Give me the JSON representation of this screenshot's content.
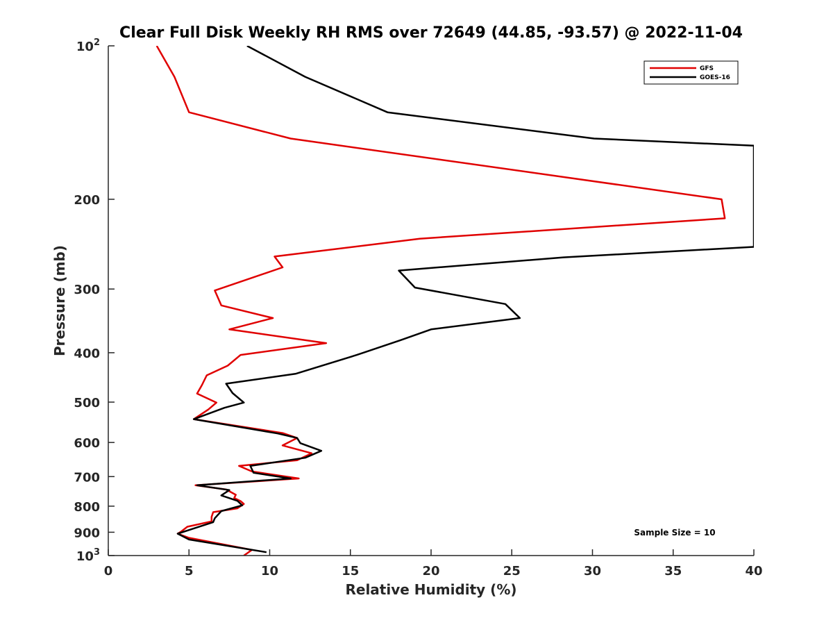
{
  "chart_data": {
    "type": "line",
    "title": "Clear Full Disk Weekly RH RMS over 72649 (44.85, -93.57) @ 2022-11-04",
    "xlabel": "Relative Humidity (%)",
    "ylabel": "Pressure (mb)",
    "xlim": [
      0,
      40
    ],
    "ylim": [
      100,
      1000
    ],
    "y_scale": "log",
    "y_reversed": true,
    "grid": false,
    "legend_position": "top-right",
    "x_ticks": [
      0,
      5,
      10,
      15,
      20,
      25,
      30,
      35,
      40
    ],
    "x_tick_labels": [
      "0",
      "5",
      "10",
      "15",
      "20",
      "25",
      "30",
      "35",
      "40"
    ],
    "y_ticks": [
      100,
      200,
      300,
      400,
      500,
      600,
      700,
      800,
      900,
      1000
    ],
    "y_tick_labels": [
      {
        "base": "10",
        "exp": "2"
      },
      {
        "base": "200",
        "exp": ""
      },
      {
        "base": "300",
        "exp": ""
      },
      {
        "base": "400",
        "exp": ""
      },
      {
        "base": "500",
        "exp": ""
      },
      {
        "base": "600",
        "exp": ""
      },
      {
        "base": "700",
        "exp": ""
      },
      {
        "base": "800",
        "exp": ""
      },
      {
        "base": "900",
        "exp": ""
      },
      {
        "base": "10",
        "exp": "3"
      }
    ],
    "annotation": "Sample Size = 10",
    "series": [
      {
        "name": "GFS",
        "color": "#e00000",
        "points": [
          [
            3.0,
            100
          ],
          [
            4.1,
            115
          ],
          [
            5.0,
            135
          ],
          [
            11.3,
            152
          ],
          [
            38.0,
            200
          ],
          [
            38.2,
            218
          ],
          [
            19.3,
            239
          ],
          [
            10.3,
            259
          ],
          [
            10.8,
            272
          ],
          [
            6.6,
            302
          ],
          [
            7.0,
            323
          ],
          [
            10.2,
            342
          ],
          [
            7.5,
            360
          ],
          [
            13.5,
            383
          ],
          [
            8.2,
            404
          ],
          [
            7.4,
            424
          ],
          [
            6.1,
            443
          ],
          [
            5.8,
            463
          ],
          [
            5.5,
            481
          ],
          [
            6.7,
            501
          ],
          [
            6.2,
            517
          ],
          [
            5.3,
            540
          ],
          [
            10.8,
            575
          ],
          [
            11.7,
            588
          ],
          [
            10.8,
            608
          ],
          [
            12.6,
            630
          ],
          [
            11.7,
            650
          ],
          [
            8.1,
            667
          ],
          [
            8.9,
            684
          ],
          [
            11.8,
            706
          ],
          [
            5.4,
            728
          ],
          [
            7.3,
            742
          ],
          [
            7.9,
            760
          ],
          [
            7.8,
            771
          ],
          [
            8.2,
            782
          ],
          [
            8.4,
            792
          ],
          [
            8.0,
            808
          ],
          [
            6.5,
            822
          ],
          [
            6.4,
            840
          ],
          [
            6.4,
            857
          ],
          [
            4.9,
            878
          ],
          [
            4.5,
            898
          ],
          [
            4.3,
            906
          ],
          [
            5.0,
            923
          ],
          [
            8.9,
            975
          ],
          [
            8.4,
            1000
          ]
        ]
      },
      {
        "name": "GOES-16",
        "color": "#000000",
        "points": [
          [
            8.6,
            100
          ],
          [
            12.2,
            115
          ],
          [
            17.3,
            135
          ],
          [
            30.1,
            152
          ],
          [
            40.0,
            157
          ],
          [
            40.0,
            248
          ],
          [
            28.2,
            260
          ],
          [
            18.0,
            276
          ],
          [
            19.0,
            298
          ],
          [
            24.6,
            321
          ],
          [
            25.5,
            342
          ],
          [
            20.0,
            360
          ],
          [
            18.1,
            378
          ],
          [
            15.4,
            404
          ],
          [
            11.6,
            440
          ],
          [
            7.3,
            460
          ],
          [
            7.7,
            480
          ],
          [
            8.4,
            501
          ],
          [
            7.2,
            513
          ],
          [
            5.3,
            540
          ],
          [
            10.5,
            576
          ],
          [
            11.7,
            588
          ],
          [
            11.9,
            602
          ],
          [
            13.2,
            623
          ],
          [
            12.2,
            643
          ],
          [
            8.8,
            667
          ],
          [
            9.0,
            688
          ],
          [
            11.3,
            706
          ],
          [
            5.5,
            728
          ],
          [
            7.5,
            744
          ],
          [
            7.0,
            762
          ],
          [
            8.0,
            781
          ],
          [
            8.3,
            797
          ],
          [
            7.0,
            818
          ],
          [
            6.6,
            845
          ],
          [
            6.5,
            860
          ],
          [
            4.3,
            906
          ],
          [
            5.0,
            930
          ],
          [
            9.8,
            985
          ]
        ]
      }
    ]
  }
}
